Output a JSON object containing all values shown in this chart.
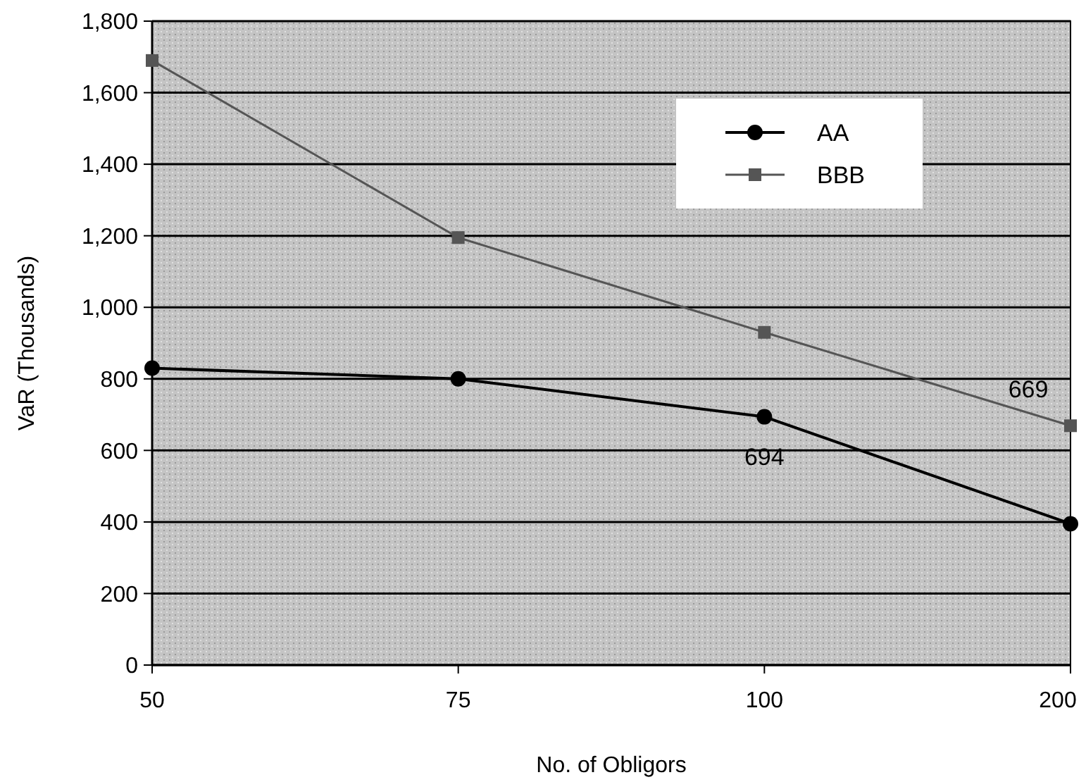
{
  "chart_data": {
    "type": "line",
    "xlabel": "No. of Obligors",
    "ylabel": "VaR (Thousands)",
    "categories": [
      "50",
      "75",
      "100",
      "200"
    ],
    "series": [
      {
        "name": "AA",
        "color": "#000000",
        "marker": "circle",
        "line_style": "solid",
        "values": [
          830,
          800,
          694,
          395
        ],
        "value_labels": [
          null,
          null,
          "694",
          null
        ]
      },
      {
        "name": "BBB",
        "color": "#555555",
        "marker": "square",
        "line_style": "solid",
        "values": [
          1690,
          1195,
          930,
          669
        ],
        "value_labels": [
          null,
          null,
          null,
          "669"
        ]
      }
    ],
    "ylim": [
      0,
      1800
    ],
    "yticks": [
      {
        "value": 0,
        "label": "0"
      },
      {
        "value": 200,
        "label": "200"
      },
      {
        "value": 400,
        "label": "400"
      },
      {
        "value": 600,
        "label": "600"
      },
      {
        "value": 800,
        "label": "800"
      },
      {
        "value": 1000,
        "label": "1,000"
      },
      {
        "value": 1200,
        "label": "1,200"
      },
      {
        "value": 1400,
        "label": "1,400"
      },
      {
        "value": 1600,
        "label": "1,600"
      },
      {
        "value": 1800,
        "label": "1,800"
      }
    ],
    "grid": "y",
    "legend": "top right"
  }
}
